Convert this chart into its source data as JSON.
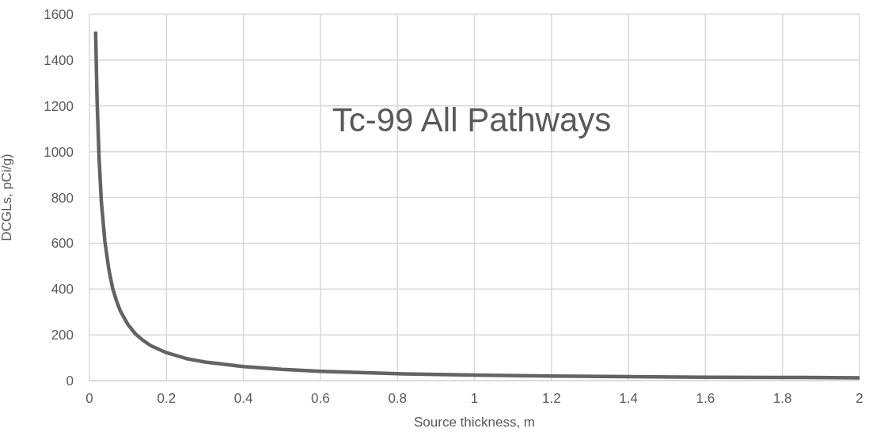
{
  "chart_data": {
    "type": "line",
    "title": "Tc-99 All Pathways",
    "xlabel": "Source thickness, m",
    "ylabel": "DCGLs, pCi/g)",
    "x": [
      0.016,
      0.02,
      0.025,
      0.031,
      0.04,
      0.05,
      0.06,
      0.07,
      0.08,
      0.1,
      0.12,
      0.14,
      0.16,
      0.2,
      0.25,
      0.3,
      0.4,
      0.5,
      0.6,
      0.8,
      1,
      1.2,
      1.4,
      1.6,
      1.8,
      2
    ],
    "series": [
      {
        "color": "#636363",
        "values": [
          1525,
          1215,
          975,
          780,
          610,
          490,
          405,
          350,
          305,
          245,
          203,
          175,
          152,
          122,
          97,
          81,
          61,
          49,
          41,
          30,
          24,
          20,
          17,
          15,
          14,
          12
        ]
      }
    ],
    "xlim": [
      0,
      2
    ],
    "xticks": [
      0,
      0.2,
      0.4,
      0.6,
      0.8,
      1,
      1.2,
      1.4,
      1.6,
      1.8,
      2
    ],
    "ylim": [
      0,
      1600
    ],
    "yticks": [
      0,
      200,
      400,
      600,
      800,
      1000,
      1200,
      1400,
      1600
    ],
    "grid": true,
    "legend": false,
    "marker": "none",
    "line_style": "solid"
  }
}
